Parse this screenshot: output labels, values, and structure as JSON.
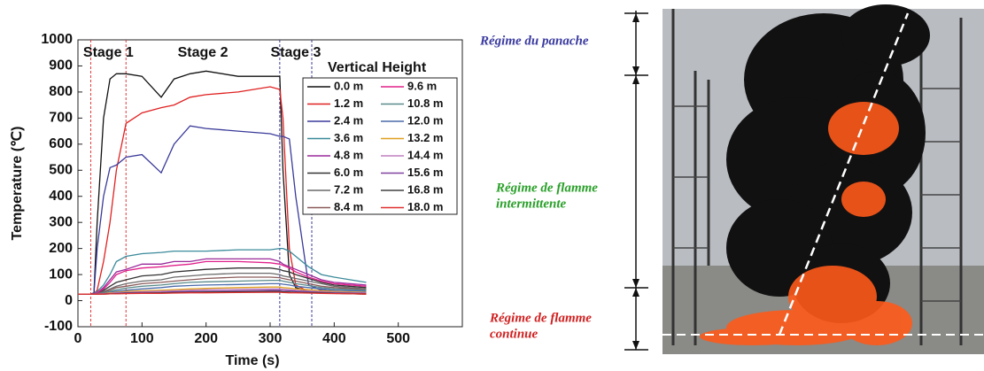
{
  "chart_data": {
    "type": "line",
    "xlabel": "Time (s)",
    "ylabel": "Temperature (℃)",
    "xlim": [
      0,
      600
    ],
    "ylim": [
      -100,
      1000
    ],
    "xticks": [
      0,
      100,
      200,
      300,
      400,
      500
    ],
    "yticks": [
      -100,
      0,
      100,
      200,
      300,
      400,
      500,
      600,
      700,
      800,
      900,
      1000
    ],
    "legend_title": "Vertical Height",
    "stages": [
      {
        "label": "Stage 1",
        "color": "#e03a3a"
      },
      {
        "label": "Stage 2",
        "color": "#3f8a5a"
      },
      {
        "label": "Stage 3",
        "color": "#3a3a9a"
      }
    ],
    "stage_boundaries": [
      {
        "x": 20,
        "color": "#e03a3a"
      },
      {
        "x": 75,
        "color": "#e03a3a"
      },
      {
        "x": 315,
        "color": "#3a3a9a"
      },
      {
        "x": 365,
        "color": "#3a3a9a"
      }
    ],
    "x": [
      0,
      20,
      25,
      30,
      40,
      50,
      60,
      75,
      100,
      130,
      150,
      175,
      200,
      250,
      300,
      315,
      320,
      330,
      340,
      360,
      380,
      400,
      450
    ],
    "series": [
      {
        "name": "0.0 m",
        "color": "#111111",
        "values": [
          25,
          25,
          30,
          300,
          700,
          850,
          870,
          870,
          860,
          780,
          850,
          870,
          880,
          860,
          860,
          860,
          500,
          100,
          50,
          35,
          30,
          28,
          25
        ]
      },
      {
        "name": "1.2 m",
        "color": "#e02020",
        "values": [
          25,
          25,
          28,
          40,
          150,
          300,
          500,
          680,
          720,
          740,
          750,
          780,
          790,
          800,
          820,
          810,
          700,
          200,
          60,
          35,
          30,
          28,
          25
        ]
      },
      {
        "name": "2.4 m",
        "color": "#3a3a9a",
        "values": [
          25,
          25,
          30,
          200,
          400,
          510,
          520,
          550,
          560,
          490,
          600,
          670,
          660,
          650,
          640,
          630,
          630,
          620,
          400,
          60,
          40,
          35,
          28
        ]
      },
      {
        "name": "3.6 m",
        "color": "#3a8a9a",
        "values": [
          25,
          25,
          28,
          35,
          60,
          100,
          150,
          170,
          180,
          185,
          190,
          190,
          190,
          195,
          195,
          200,
          200,
          190,
          170,
          130,
          100,
          90,
          70
        ]
      },
      {
        "name": "4.8 m",
        "color": "#9a2a9a",
        "values": [
          25,
          25,
          27,
          30,
          50,
          80,
          110,
          120,
          140,
          140,
          150,
          150,
          160,
          160,
          160,
          150,
          140,
          130,
          120,
          100,
          80,
          70,
          60
        ]
      },
      {
        "name": "6.0 m",
        "color": "#333333",
        "values": [
          25,
          25,
          26,
          28,
          40,
          55,
          70,
          80,
          95,
          100,
          110,
          115,
          120,
          125,
          125,
          120,
          115,
          110,
          100,
          85,
          70,
          60,
          50
        ]
      },
      {
        "name": "7.2 m",
        "color": "#6a6a6a",
        "values": [
          25,
          25,
          26,
          27,
          35,
          45,
          55,
          65,
          75,
          80,
          90,
          95,
          100,
          105,
          105,
          100,
          95,
          90,
          85,
          75,
          65,
          55,
          45
        ]
      },
      {
        "name": "8.4 m",
        "color": "#8a5a5a",
        "values": [
          25,
          25,
          25,
          27,
          32,
          40,
          50,
          55,
          65,
          70,
          75,
          80,
          85,
          90,
          90,
          88,
          85,
          80,
          75,
          65,
          55,
          50,
          42
        ]
      },
      {
        "name": "9.6 m",
        "color": "#e0208a",
        "values": [
          25,
          25,
          26,
          30,
          45,
          70,
          100,
          115,
          125,
          130,
          135,
          140,
          150,
          150,
          145,
          140,
          135,
          125,
          110,
          90,
          75,
          65,
          55
        ]
      },
      {
        "name": "10.8 m",
        "color": "#5a8a8a",
        "values": [
          25,
          25,
          25,
          26,
          30,
          35,
          42,
          48,
          55,
          60,
          65,
          70,
          72,
          75,
          78,
          78,
          75,
          70,
          65,
          58,
          50,
          45,
          40
        ]
      },
      {
        "name": "12.0 m",
        "color": "#4a6aaa",
        "values": [
          25,
          25,
          25,
          26,
          28,
          32,
          36,
          40,
          45,
          50,
          55,
          58,
          60,
          62,
          65,
          65,
          63,
          60,
          55,
          50,
          45,
          40,
          36
        ]
      },
      {
        "name": "13.2 m",
        "color": "#e0a020",
        "values": [
          25,
          25,
          25,
          25,
          27,
          30,
          32,
          35,
          38,
          40,
          42,
          45,
          47,
          50,
          52,
          52,
          50,
          48,
          45,
          42,
          38,
          35,
          32
        ]
      },
      {
        "name": "14.4 m",
        "color": "#c080c0",
        "values": [
          25,
          25,
          25,
          25,
          26,
          28,
          30,
          32,
          34,
          36,
          38,
          40,
          42,
          44,
          45,
          45,
          44,
          42,
          40,
          37,
          34,
          32,
          30
        ]
      },
      {
        "name": "15.6 m",
        "color": "#8040a0",
        "values": [
          25,
          25,
          25,
          25,
          26,
          27,
          28,
          30,
          31,
          32,
          34,
          35,
          36,
          38,
          40,
          40,
          39,
          38,
          36,
          34,
          32,
          30,
          28
        ]
      },
      {
        "name": "16.8 m",
        "color": "#404040",
        "values": [
          25,
          25,
          25,
          25,
          25,
          26,
          27,
          28,
          29,
          30,
          31,
          32,
          33,
          34,
          35,
          35,
          34,
          33,
          32,
          31,
          30,
          28,
          27
        ]
      },
      {
        "name": "18.0 m",
        "color": "#e03030",
        "values": [
          25,
          25,
          25,
          25,
          25,
          26,
          26,
          27,
          28,
          28,
          29,
          30,
          30,
          31,
          32,
          32,
          31,
          30,
          30,
          29,
          28,
          27,
          26
        ]
      }
    ]
  },
  "annotations": {
    "plume": {
      "lines": [
        "Régime du panache"
      ],
      "color": "#3a3aa0"
    },
    "intermittent": {
      "lines": [
        "Régime de flamme",
        "intermittente"
      ],
      "color": "#2aa02a"
    },
    "continuous": {
      "lines": [
        "Régime de flamme",
        "continue"
      ],
      "color": "#d02020"
    }
  }
}
